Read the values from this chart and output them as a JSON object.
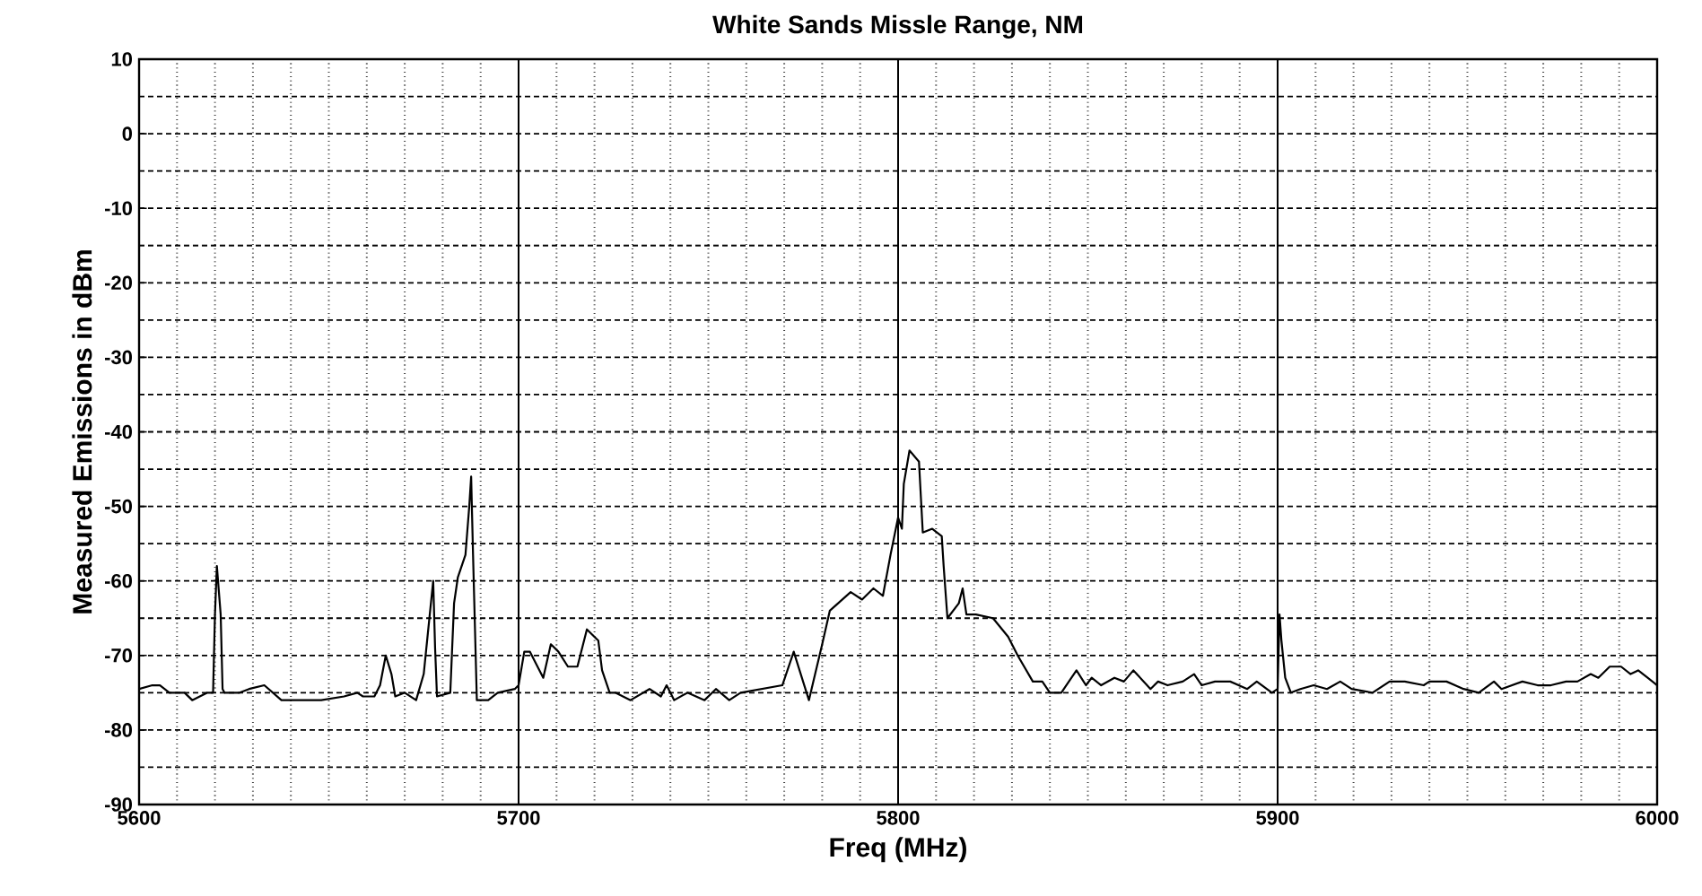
{
  "chart_data": {
    "type": "line",
    "title": "White Sands Missle Range, NM",
    "xlabel": "Freq (MHz)",
    "ylabel": "Measured Emissions in dBm",
    "xlim": [
      5600,
      6000
    ],
    "ylim": [
      -90,
      10
    ],
    "xticks": [
      5600,
      5700,
      5800,
      5900,
      6000
    ],
    "yticks": [
      -90,
      -80,
      -70,
      -60,
      -50,
      -40,
      -30,
      -20,
      -10,
      0,
      10
    ],
    "grid": true,
    "marker": "none",
    "line_style": "solid",
    "series": [
      {
        "color": "#000000",
        "x": [
          5600,
          5603.5,
          5605.5,
          5608,
          5612,
          5614,
          5618,
          5619.5,
          5620,
          5620.5,
          5621.5,
          5622,
          5622.5,
          5626.5,
          5629,
          5633,
          5637.5,
          5641.5,
          5648,
          5654,
          5657.5,
          5659,
          5662,
          5663.5,
          5665,
          5666.5,
          5667.5,
          5670,
          5673,
          5675,
          5676.5,
          5677.5,
          5678,
          5678.5,
          5682,
          5683,
          5684,
          5686,
          5687,
          5687.5,
          5688,
          5689,
          5692,
          5694.5,
          5699,
          5700,
          5701.5,
          5703,
          5706.5,
          5708.5,
          5710.5,
          5713,
          5715.5,
          5718,
          5721,
          5722,
          5724,
          5725.5,
          5729.5,
          5734.5,
          5737.5,
          5739,
          5741,
          5744.5,
          5749,
          5752,
          5755.5,
          5758.5,
          5764,
          5769.5,
          5772.5,
          5776.5,
          5780,
          5782,
          5787.5,
          5790.5,
          5793.5,
          5796,
          5798,
          5800,
          5801,
          5801.5,
          5803,
          5805.5,
          5806.5,
          5809,
          5811.5,
          5812,
          5813,
          5816,
          5817,
          5818,
          5820.5,
          5825,
          5829,
          5831.5,
          5835.5,
          5838,
          5840,
          5843,
          5847,
          5849.5,
          5851,
          5853.5,
          5857,
          5859.5,
          5862,
          5866.5,
          5868.5,
          5871,
          5875,
          5878,
          5880,
          5883.5,
          5887.5,
          5892,
          5894.5,
          5898.5,
          5900,
          5900.5,
          5901,
          5902,
          5903.5,
          5906,
          5909.5,
          5913,
          5916.5,
          5919.5,
          5925,
          5929.5,
          5933.5,
          5938.5,
          5940,
          5944.5,
          5949,
          5953,
          5957,
          5959,
          5964.5,
          5968.5,
          5972,
          5976,
          5979,
          5982.5,
          5984.5,
          5987.5,
          5990.5,
          5993,
          5995,
          5997.5,
          6000
        ],
        "values": [
          -74.5,
          -74,
          -74,
          -75,
          -75,
          -76,
          -75,
          -75,
          -64.5,
          -58,
          -64.5,
          -74.5,
          -75,
          -75,
          -74.5,
          -74,
          -76,
          -76,
          -76,
          -75.5,
          -75,
          -75.5,
          -75.5,
          -74,
          -70,
          -72.5,
          -75.5,
          -75,
          -76,
          -72.5,
          -65,
          -60,
          -69,
          -75.5,
          -75,
          -63,
          -59.5,
          -56.5,
          -50,
          -46,
          -56.5,
          -76,
          -76,
          -75,
          -74.5,
          -74,
          -69.5,
          -69.5,
          -73,
          -68.5,
          -69.5,
          -71.5,
          -71.5,
          -66.5,
          -68,
          -72,
          -75,
          -75,
          -76,
          -74.5,
          -75.5,
          -74,
          -76,
          -75,
          -76,
          -74.5,
          -76,
          -75,
          -74.5,
          -74,
          -69.5,
          -76,
          -68.5,
          -64,
          -61.5,
          -62.5,
          -61,
          -62,
          -56.5,
          -51.5,
          -53,
          -47,
          -42.5,
          -44,
          -53.5,
          -53,
          -54,
          -58,
          -65,
          -63,
          -61,
          -64.5,
          -64.5,
          -65,
          -67.5,
          -70,
          -73.5,
          -73.5,
          -75,
          -75,
          -72,
          -74,
          -73,
          -74,
          -73,
          -73.5,
          -72,
          -74.5,
          -73.5,
          -74,
          -73.5,
          -72.5,
          -74,
          -73.5,
          -73.5,
          -74.5,
          -73.5,
          -75,
          -74.5,
          -64.5,
          -68,
          -73,
          -75,
          -74.5,
          -74,
          -74.5,
          -73.5,
          -74.5,
          -75,
          -73.5,
          -73.5,
          -74,
          -73.5,
          -73.5,
          -74.5,
          -75,
          -73.5,
          -74.5,
          -73.5,
          -74,
          -74,
          -73.5,
          -73.5,
          -72.5,
          -73,
          -71.5,
          -71.5,
          -72.5,
          -72,
          -73,
          -74
        ]
      }
    ]
  }
}
